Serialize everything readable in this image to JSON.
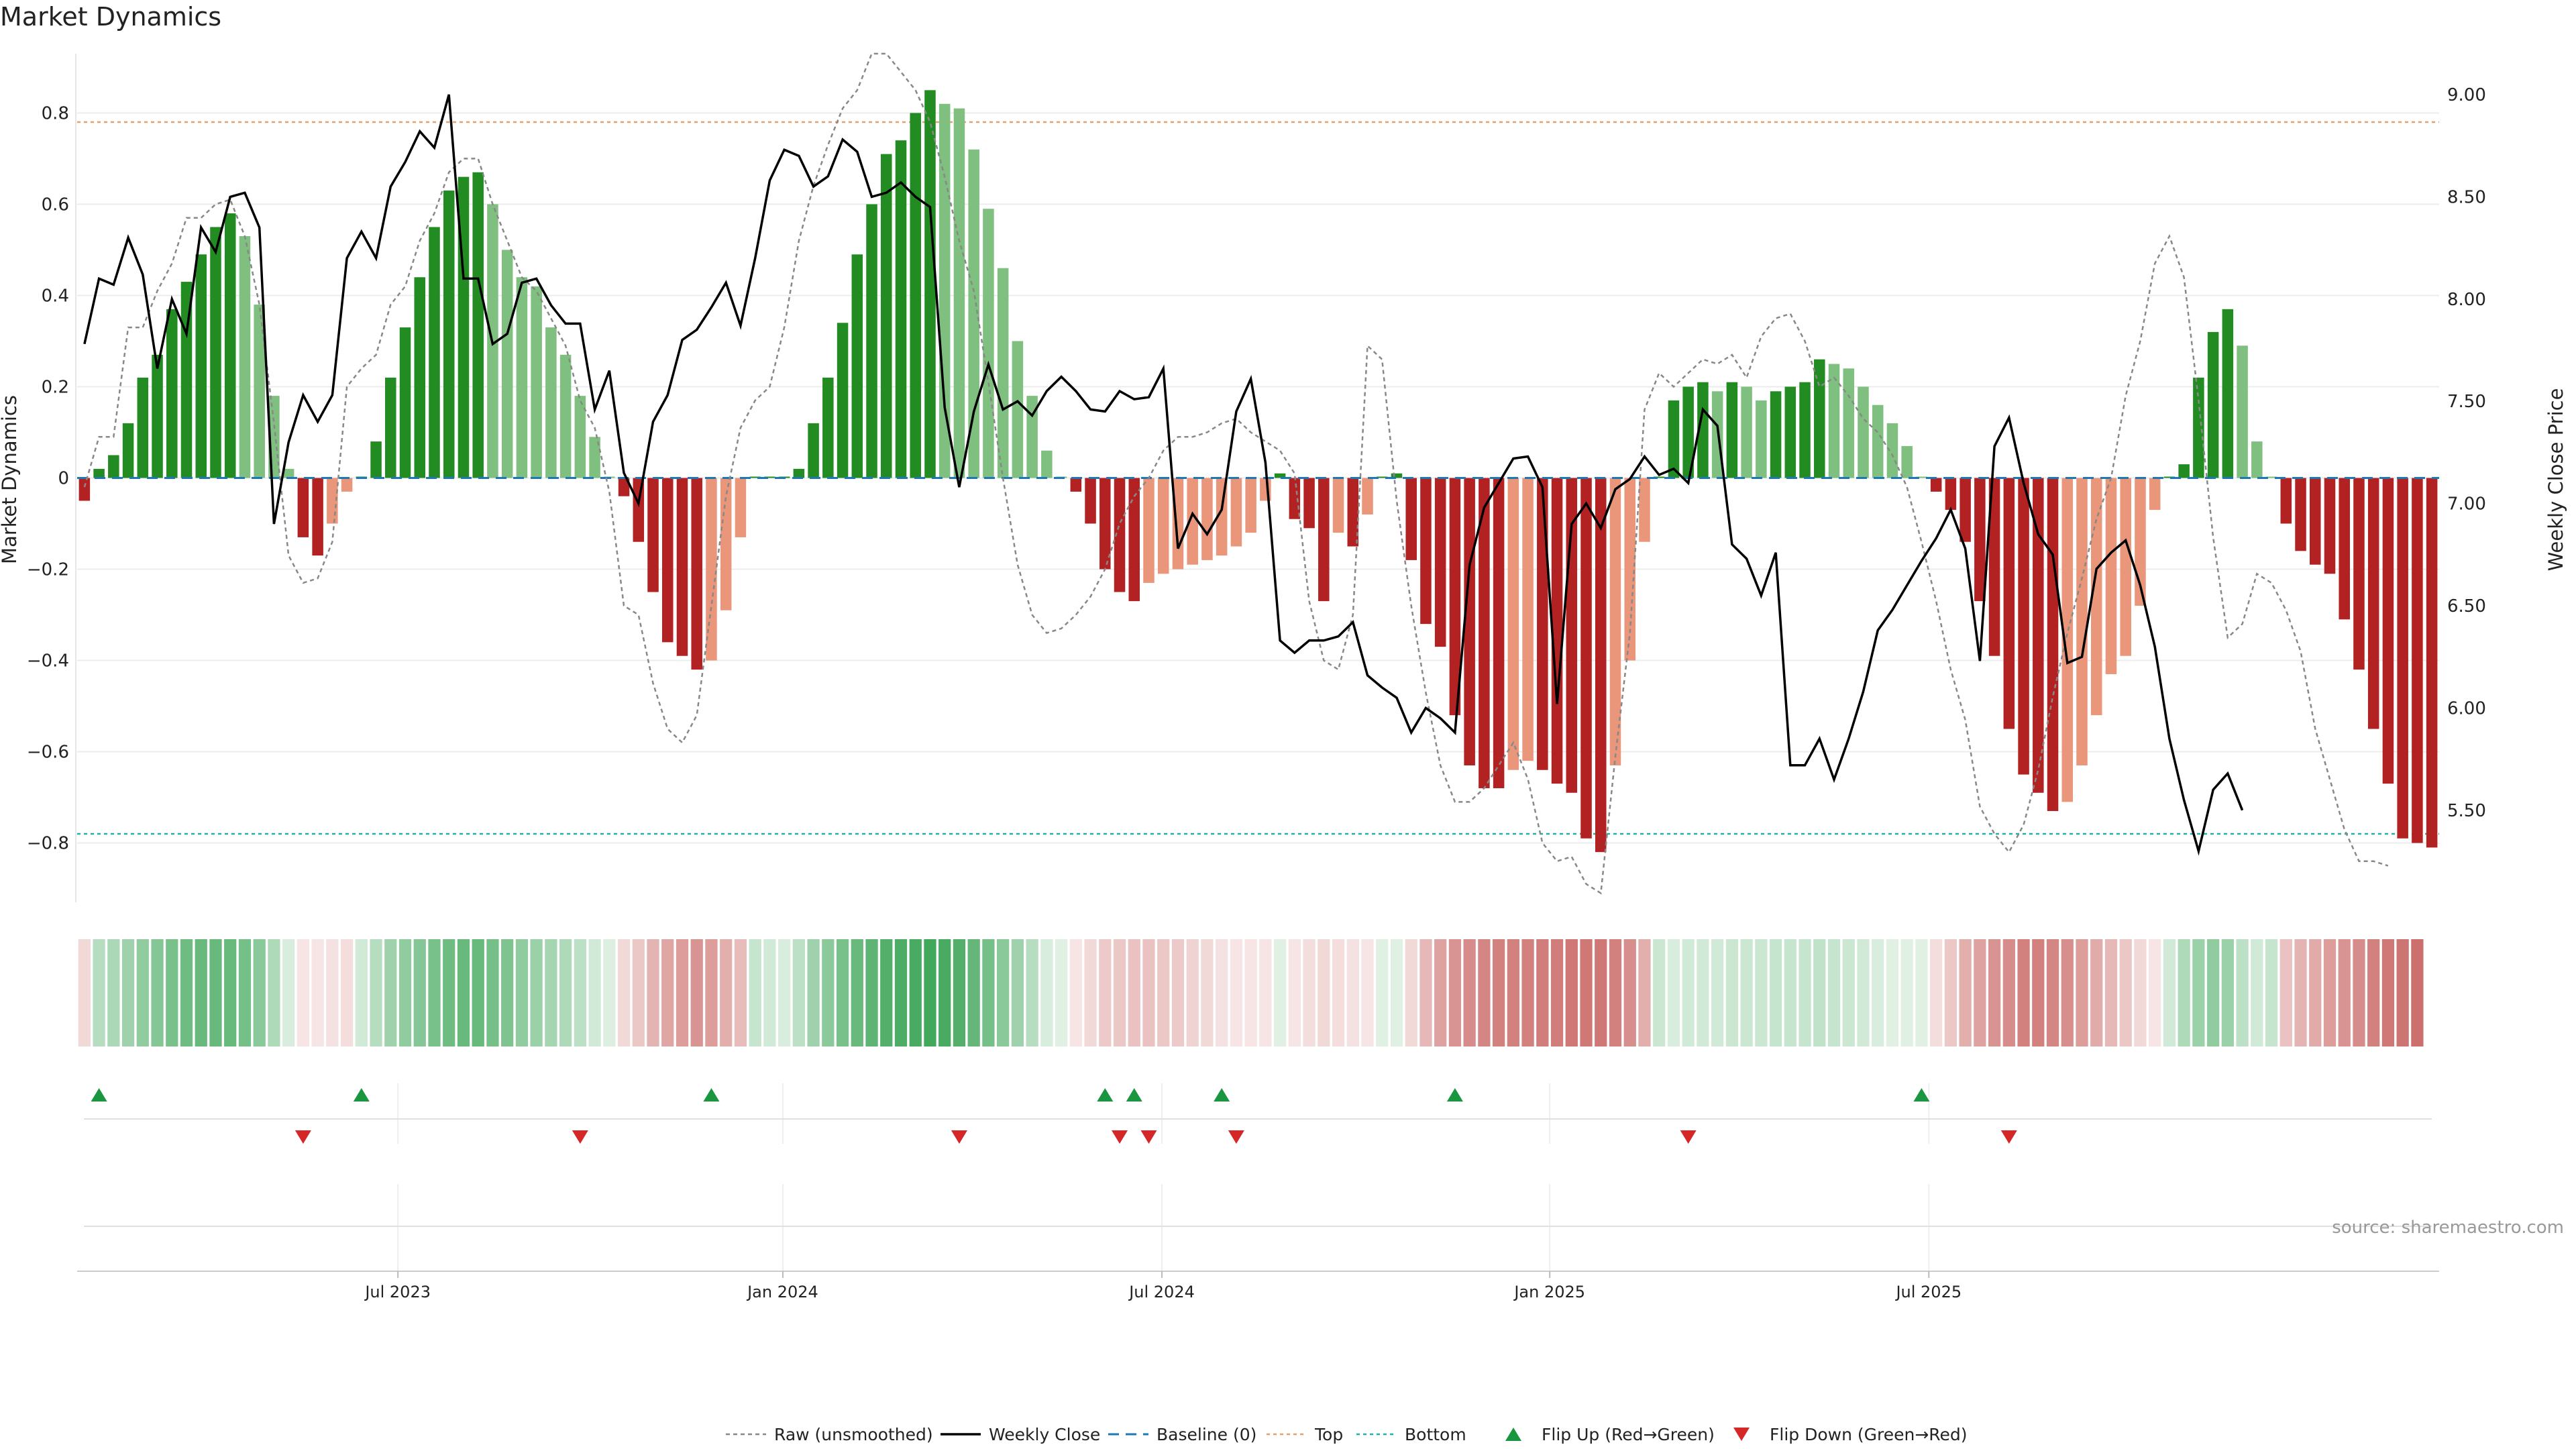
{
  "chart_data": {
    "type": "bar",
    "title": "Market Dynamics",
    "ylabel": "Market Dynamics",
    "y2label": "Weekly Close Price",
    "ylim": [
      -0.93,
      0.93
    ],
    "y2lim": [
      5.05,
      9.2
    ],
    "yticks": [
      -0.8,
      -0.6,
      -0.4,
      -0.2,
      0,
      0.2,
      0.4,
      0.6,
      0.8
    ],
    "yticklabels": [
      "−0.8",
      "−0.6",
      "−0.4",
      "−0.2",
      "0",
      "0.2",
      "0.4",
      "0.6",
      "0.8"
    ],
    "y2ticks": [
      5.5,
      6.0,
      6.5,
      7.0,
      7.5,
      8.0,
      8.5,
      9.0
    ],
    "y2ticklabels": [
      "5.50",
      "6.00",
      "6.50",
      "7.00",
      "7.50",
      "8.00",
      "8.50",
      "9.00"
    ],
    "top_line": 0.78,
    "bottom_line": -0.78,
    "x_range": [
      0,
      147
    ],
    "xticks": [
      {
        "week": 21.5,
        "label": "Jul 2023"
      },
      {
        "week": 47.9,
        "label": "Jan 2024"
      },
      {
        "week": 73.9,
        "label": "Jul 2024"
      },
      {
        "week": 100.5,
        "label": "Jan 2025"
      },
      {
        "week": 126.5,
        "label": "Jul 2025"
      }
    ],
    "bars": [
      -0.05,
      0.02,
      0.05,
      0.12,
      0.22,
      0.27,
      0.37,
      0.43,
      0.49,
      0.55,
      0.58,
      0.53,
      0.38,
      0.18,
      0.02,
      -0.13,
      -0.17,
      -0.1,
      -0.03,
      0.0,
      0.08,
      0.22,
      0.33,
      0.44,
      0.55,
      0.63,
      0.66,
      0.67,
      0.6,
      0.5,
      0.44,
      0.42,
      0.33,
      0.27,
      0.18,
      0.09,
      0.0,
      -0.04,
      -0.14,
      -0.25,
      -0.36,
      -0.39,
      -0.42,
      -0.4,
      -0.29,
      -0.13,
      0.0,
      0.0,
      0.0,
      0.02,
      0.12,
      0.22,
      0.34,
      0.49,
      0.6,
      0.71,
      0.74,
      0.8,
      0.85,
      0.82,
      0.81,
      0.72,
      0.59,
      0.46,
      0.3,
      0.18,
      0.06,
      0.0,
      -0.03,
      -0.1,
      -0.2,
      -0.25,
      -0.27,
      -0.23,
      -0.21,
      -0.2,
      -0.19,
      -0.18,
      -0.17,
      -0.15,
      -0.12,
      -0.05,
      0.01,
      -0.09,
      -0.11,
      -0.27,
      -0.12,
      -0.15,
      -0.08,
      0.0,
      0.01,
      -0.18,
      -0.32,
      -0.37,
      -0.52,
      -0.63,
      -0.68,
      -0.68,
      -0.64,
      -0.62,
      -0.64,
      -0.67,
      -0.69,
      -0.79,
      -0.82,
      -0.63,
      -0.4,
      -0.14,
      0.0,
      0.17,
      0.2,
      0.21,
      0.19,
      0.21,
      0.2,
      0.17,
      0.19,
      0.2,
      0.21,
      0.26,
      0.25,
      0.24,
      0.2,
      0.16,
      0.12,
      0.07,
      0.0,
      -0.03,
      -0.07,
      -0.14,
      -0.27,
      -0.39,
      -0.55,
      -0.65,
      -0.69,
      -0.73,
      -0.71,
      -0.63,
      -0.52,
      -0.43,
      -0.39,
      -0.28,
      -0.07,
      0.0,
      0.03,
      0.22,
      0.32,
      0.37,
      0.29,
      0.08,
      0.0,
      -0.1,
      -0.16,
      -0.19,
      -0.21,
      -0.31,
      -0.42,
      -0.55,
      -0.67,
      -0.79,
      -0.8,
      -0.81
    ],
    "raw": [
      -0.02,
      0.09,
      0.09,
      0.33,
      0.33,
      0.41,
      0.47,
      0.57,
      0.57,
      0.6,
      0.61,
      0.53,
      0.38,
      0.12,
      -0.17,
      -0.23,
      -0.22,
      -0.14,
      0.2,
      0.24,
      0.27,
      0.38,
      0.42,
      0.52,
      0.58,
      0.67,
      0.7,
      0.7,
      0.6,
      0.52,
      0.44,
      0.41,
      0.35,
      0.29,
      0.17,
      0.11,
      -0.03,
      -0.28,
      -0.3,
      -0.45,
      -0.55,
      -0.58,
      -0.52,
      -0.28,
      -0.04,
      0.11,
      0.17,
      0.2,
      0.33,
      0.52,
      0.64,
      0.73,
      0.81,
      0.85,
      0.93,
      0.93,
      0.89,
      0.85,
      0.78,
      0.66,
      0.52,
      0.41,
      0.21,
      0.0,
      -0.19,
      -0.3,
      -0.34,
      -0.33,
      -0.3,
      -0.26,
      -0.2,
      -0.1,
      -0.04,
      0.0,
      0.06,
      0.09,
      0.09,
      0.1,
      0.12,
      0.13,
      0.1,
      0.08,
      0.06,
      0.01,
      -0.27,
      -0.4,
      -0.42,
      -0.3,
      0.29,
      0.26,
      -0.05,
      -0.28,
      -0.47,
      -0.63,
      -0.71,
      -0.71,
      -0.68,
      -0.63,
      -0.58,
      -0.66,
      -0.8,
      -0.84,
      -0.83,
      -0.89,
      -0.91,
      -0.61,
      -0.34,
      0.15,
      0.23,
      0.2,
      0.23,
      0.26,
      0.25,
      0.27,
      0.22,
      0.31,
      0.35,
      0.36,
      0.3,
      0.2,
      0.22,
      0.18,
      0.13,
      0.1,
      0.05,
      -0.02,
      -0.14,
      -0.27,
      -0.42,
      -0.53,
      -0.72,
      -0.78,
      -0.82,
      -0.76,
      -0.64,
      -0.48,
      -0.34,
      -0.22,
      -0.09,
      0.0,
      0.18,
      0.3,
      0.47,
      0.53,
      0.44,
      0.17,
      -0.13,
      -0.35,
      -0.32,
      -0.21,
      -0.23,
      -0.29,
      -0.38,
      -0.55,
      -0.66,
      -0.77,
      -0.84,
      -0.84,
      -0.85
    ],
    "price": [
      7.78,
      8.1,
      8.07,
      8.3,
      8.12,
      7.66,
      8.0,
      7.83,
      8.35,
      8.23,
      8.5,
      8.52,
      8.35,
      6.9,
      7.3,
      7.53,
      7.4,
      7.53,
      8.2,
      8.33,
      8.2,
      8.55,
      8.67,
      8.82,
      8.74,
      9.0,
      8.1,
      8.1,
      7.78,
      7.83,
      8.08,
      8.1,
      7.97,
      7.88,
      7.88,
      7.46,
      7.65,
      7.15,
      7.0,
      7.4,
      7.53,
      7.8,
      7.85,
      7.96,
      8.08,
      7.87,
      8.2,
      8.58,
      8.73,
      8.7,
      8.55,
      8.6,
      8.78,
      8.72,
      8.5,
      8.52,
      8.57,
      8.5,
      8.45,
      7.47,
      7.08,
      7.45,
      7.68,
      7.46,
      7.5,
      7.43,
      7.55,
      7.62,
      7.55,
      7.46,
      7.45,
      7.55,
      7.51,
      7.52,
      7.66,
      6.78,
      6.95,
      6.85,
      6.97,
      7.45,
      7.61,
      7.2,
      6.33,
      6.27,
      6.33,
      6.33,
      6.35,
      6.42,
      6.16,
      6.1,
      6.05,
      5.88,
      6.0,
      5.95,
      5.88,
      6.7,
      6.98,
      7.1,
      7.22,
      7.23,
      7.08,
      6.02,
      6.9,
      7.0,
      6.88,
      7.07,
      7.12,
      7.23,
      7.14,
      7.17,
      7.1,
      7.46,
      7.38,
      6.8,
      6.73,
      6.55,
      6.76,
      5.72,
      5.72,
      5.85,
      5.65,
      5.85,
      6.08,
      6.38,
      6.48,
      6.6,
      6.72,
      6.83,
      6.97,
      6.78,
      6.23,
      7.28,
      7.42,
      7.1,
      6.85,
      6.75,
      6.22,
      6.25,
      6.68,
      6.76,
      6.82,
      6.6,
      6.3,
      5.85,
      5.55,
      5.3,
      5.6,
      5.68,
      5.5
    ],
    "color_strip": [
      0.62,
      0.72,
      0.76,
      0.8,
      0.86,
      0.9,
      0.94,
      0.98,
      1.0,
      1.0,
      1.0,
      0.96,
      0.88,
      0.74,
      0.6,
      0.56,
      0.56,
      0.58,
      0.6,
      0.62,
      0.72,
      0.8,
      0.86,
      0.9,
      0.94,
      0.98,
      1.0,
      1.0,
      0.96,
      0.92,
      0.86,
      0.82,
      0.78,
      0.74,
      0.7,
      0.62,
      0.58,
      0.62,
      0.7,
      0.78,
      0.84,
      0.88,
      0.92,
      0.88,
      0.8,
      0.74,
      0.66,
      0.62,
      0.6,
      0.7,
      0.8,
      0.88,
      0.94,
      1.0,
      1.04,
      1.08,
      1.1,
      1.12,
      1.14,
      1.12,
      1.08,
      1.02,
      0.96,
      0.88,
      0.8,
      0.72,
      0.6,
      0.5,
      0.56,
      0.62,
      0.68,
      0.7,
      0.72,
      0.72,
      0.7,
      0.68,
      0.64,
      0.62,
      0.58,
      0.5,
      0.5,
      0.46,
      0.5,
      0.56,
      0.6,
      0.62,
      0.6,
      0.58,
      0.56,
      0.5,
      0.46,
      0.62,
      0.76,
      0.86,
      0.92,
      0.96,
      0.98,
      1.0,
      1.0,
      1.0,
      1.02,
      1.02,
      1.04,
      1.04,
      1.04,
      1.0,
      0.94,
      0.8,
      0.64,
      0.6,
      0.62,
      0.62,
      0.62,
      0.64,
      0.64,
      0.64,
      0.66,
      0.66,
      0.66,
      0.68,
      0.66,
      0.64,
      0.62,
      0.6,
      0.56,
      0.52,
      0.5,
      0.6,
      0.7,
      0.8,
      0.86,
      0.92,
      0.96,
      1.0,
      1.0,
      0.98,
      0.94,
      0.88,
      0.82,
      0.76,
      0.7,
      0.62,
      0.56,
      0.62,
      0.74,
      0.82,
      0.86,
      0.82,
      0.7,
      0.62,
      0.66,
      0.72,
      0.78,
      0.82,
      0.88,
      0.92,
      0.96,
      1.0,
      1.04,
      1.06,
      1.08
    ],
    "flip_up_weeks": [
      1,
      19,
      43,
      70,
      72,
      78,
      94,
      126
    ],
    "flip_down_weeks": [
      15,
      34,
      60,
      71,
      73,
      79,
      110,
      132
    ],
    "legend": [
      "Raw (unsmoothed)",
      "Weekly Close",
      "Baseline (0)",
      "Top",
      "Bottom",
      "Flip Up (Red→Green)",
      "Flip Down (Green→Red)"
    ],
    "legend_placement": "bottom-center",
    "source": "source: sharemaestro.com",
    "colors": {
      "green_strong": "#228b22",
      "green_light": "#7fbf7f",
      "red_strong": "#b22222",
      "red_light": "#e9967a",
      "raw_line": "#888888",
      "price_line": "#000000",
      "baseline": "#1f77b4",
      "top": "#e6a06e",
      "bottom": "#20b2aa",
      "flip_up": "#1a9641",
      "flip_down": "#d62728",
      "strip_green": "#2e9e4a",
      "strip_red": "#c0504d"
    }
  }
}
